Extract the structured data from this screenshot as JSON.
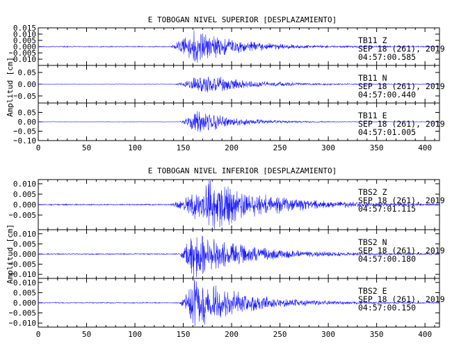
{
  "ylabel": "Amplitud [cm]",
  "trace_color": "#1a1aff",
  "axis_color": "#000000",
  "chart_data": [
    {
      "type": "line",
      "title": "E TOBOGAN NIVEL SUPERIOR [DESPLAZAMIENTO]",
      "xlim": [
        0,
        415
      ],
      "xticks": [
        0,
        50,
        100,
        150,
        200,
        250,
        300,
        350,
        400
      ],
      "panels": [
        {
          "ylim": [
            -0.015,
            0.015
          ],
          "yticks": [
            0.015,
            0.01,
            0.005,
            0.0,
            -0.005,
            -0.01
          ],
          "ytick_labels": [
            "0.015",
            "0.010",
            "0.005",
            "0.000",
            "0.005",
            "0.010"
          ],
          "info": [
            "TB11   Z",
            "SEP 18 (261), 2019",
            "04:57:00.585"
          ],
          "onset": 135,
          "peak_time": 160,
          "peak_amp": 0.011,
          "decay": 42,
          "noise": 0.0003,
          "hf": 1.2,
          "seed": 11
        },
        {
          "ylim": [
            -0.08,
            0.08
          ],
          "yticks": [
            0.05,
            0.0,
            -0.05
          ],
          "ytick_labels": [
            "0.05",
            "0.00",
            "0.05"
          ],
          "info": [
            "TB11   N",
            "SEP 18 (261), 2019",
            "04:57:00.440"
          ],
          "onset": 140,
          "peak_time": 168,
          "peak_amp": 0.05,
          "decay": 45,
          "noise": 0.001,
          "hf": 0.55,
          "seed": 23
        },
        {
          "ylim": [
            -0.1,
            0.1
          ],
          "yticks": [
            0.05,
            0.0,
            -0.05,
            -0.1
          ],
          "ytick_labels": [
            "0.05",
            "0.00",
            "0.05",
            "0.10"
          ],
          "info": [
            "TB11   E",
            "SEP 18 (261), 2019",
            "04:57:01.005"
          ],
          "onset": 145,
          "peak_time": 165,
          "peak_amp": 0.075,
          "decay": 35,
          "noise": 0.001,
          "hf": 0.5,
          "seed": 37
        }
      ]
    },
    {
      "type": "line",
      "title": "E TOBOGAN NIVEL INFERIOR [DESPLAZAMIENTO]",
      "xlim": [
        0,
        415
      ],
      "xticks": [
        0,
        50,
        100,
        150,
        200,
        250,
        300,
        350,
        400
      ],
      "panels": [
        {
          "ylim": [
            -0.012,
            0.012
          ],
          "yticks": [
            0.01,
            0.005,
            0.0,
            -0.005
          ],
          "ytick_labels": [
            "0.010",
            "0.005",
            "0.000",
            "0.005"
          ],
          "info": [
            "TBS2   Z",
            "SEP 18 (261), 2019",
            "04:57:01.115"
          ],
          "onset": 135,
          "peak_time": 175,
          "peak_amp": 0.009,
          "decay": 60,
          "noise": 0.0002,
          "hf": 1.3,
          "seed": 51
        },
        {
          "ylim": [
            -0.012,
            0.012
          ],
          "yticks": [
            0.01,
            0.005,
            0.0,
            -0.005,
            -0.01
          ],
          "ytick_labels": [
            "0.010",
            "0.005",
            "0.000",
            "0.005",
            "0.010"
          ],
          "info": [
            "TBS2   N",
            "SEP 18 (261), 2019",
            "04:57:00.180"
          ],
          "onset": 145,
          "peak_time": 160,
          "peak_amp": 0.009,
          "decay": 55,
          "noise": 0.0002,
          "hf": 1.1,
          "seed": 67
        },
        {
          "ylim": [
            -0.012,
            0.012
          ],
          "yticks": [
            0.01,
            0.005,
            0.0,
            -0.005,
            -0.01
          ],
          "ytick_labels": [
            "0.010",
            "0.005",
            "0.000",
            "0.005",
            "0.010"
          ],
          "info": [
            "TBS2   E",
            "SEP 18 (261), 2019",
            "04:57:00.150"
          ],
          "onset": 145,
          "peak_time": 160,
          "peak_amp": 0.011,
          "decay": 50,
          "noise": 0.0002,
          "hf": 1.0,
          "seed": 83
        }
      ]
    }
  ]
}
